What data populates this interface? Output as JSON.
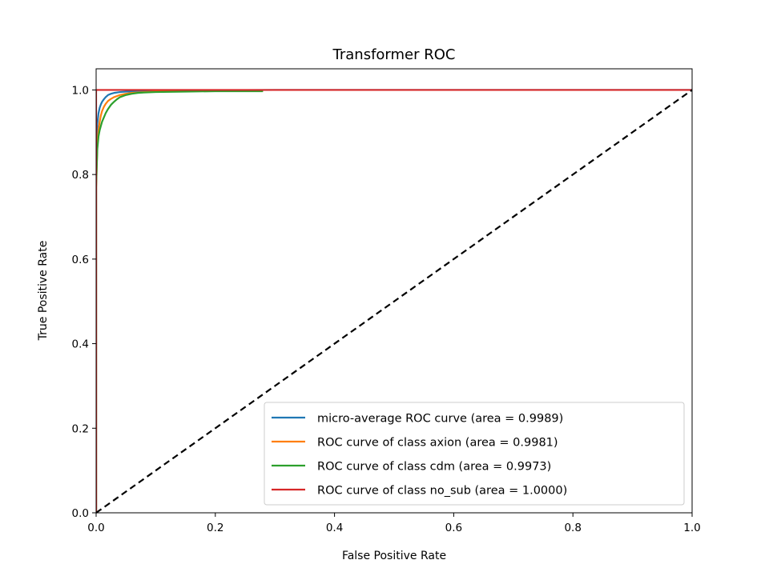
{
  "chart_data": {
    "type": "line",
    "title": "Transformer ROC",
    "xlabel": "False Positive Rate",
    "ylabel": "True Positive Rate",
    "xlim": [
      0.0,
      1.0
    ],
    "ylim": [
      0.0,
      1.05
    ],
    "xticks": [
      "0.0",
      "0.2",
      "0.4",
      "0.6",
      "0.8",
      "1.0"
    ],
    "yticks": [
      "0.0",
      "0.2",
      "0.4",
      "0.6",
      "0.8",
      "1.0"
    ],
    "grid": false,
    "legend_position": "lower-right",
    "series": [
      {
        "name": "micro-average ROC curve (area = 0.9989)",
        "color": "#1f77b4",
        "x": [
          0.0,
          0.0,
          0.002,
          0.004,
          0.006,
          0.008,
          0.01,
          0.013,
          0.016,
          0.02,
          0.025,
          0.03,
          0.04,
          0.05,
          0.07,
          0.1,
          0.15,
          0.2,
          0.3,
          0.5,
          1.0
        ],
        "y": [
          0.0,
          0.84,
          0.92,
          0.945,
          0.958,
          0.966,
          0.972,
          0.978,
          0.983,
          0.988,
          0.991,
          0.993,
          0.995,
          0.996,
          0.997,
          0.998,
          0.999,
          0.9995,
          1.0,
          1.0,
          1.0
        ]
      },
      {
        "name": "ROC curve of class axion (area = 0.9981)",
        "color": "#ff7f0e",
        "x": [
          0.0,
          0.0,
          0.002,
          0.004,
          0.006,
          0.008,
          0.01,
          0.013,
          0.016,
          0.02,
          0.025,
          0.03,
          0.04,
          0.05,
          0.06,
          0.08,
          0.1,
          0.14,
          0.2,
          0.28
        ],
        "y": [
          0.0,
          0.77,
          0.87,
          0.905,
          0.925,
          0.94,
          0.95,
          0.96,
          0.967,
          0.974,
          0.979,
          0.983,
          0.988,
          0.991,
          0.993,
          0.995,
          0.996,
          0.997,
          0.998,
          0.998
        ]
      },
      {
        "name": "ROC curve of class cdm (area = 0.9973)",
        "color": "#2ca02c",
        "x": [
          0.0,
          0.0,
          0.002,
          0.004,
          0.006,
          0.008,
          0.01,
          0.013,
          0.016,
          0.02,
          0.025,
          0.03,
          0.035,
          0.04,
          0.05,
          0.06,
          0.07,
          0.08,
          0.1,
          0.15,
          0.2,
          0.28
        ],
        "y": [
          0.0,
          0.77,
          0.86,
          0.89,
          0.905,
          0.915,
          0.925,
          0.935,
          0.945,
          0.955,
          0.965,
          0.972,
          0.978,
          0.983,
          0.988,
          0.991,
          0.993,
          0.994,
          0.995,
          0.996,
          0.997,
          0.997
        ]
      },
      {
        "name": "ROC curve of class no_sub (area = 1.0000)",
        "color": "#d62728",
        "x": [
          0.0,
          0.0,
          1.0
        ],
        "y": [
          0.0,
          1.0,
          1.0
        ]
      }
    ],
    "reference_line": {
      "x": [
        0.0,
        1.0
      ],
      "y": [
        0.0,
        1.0
      ],
      "color": "#000000",
      "style": "dashed"
    }
  }
}
